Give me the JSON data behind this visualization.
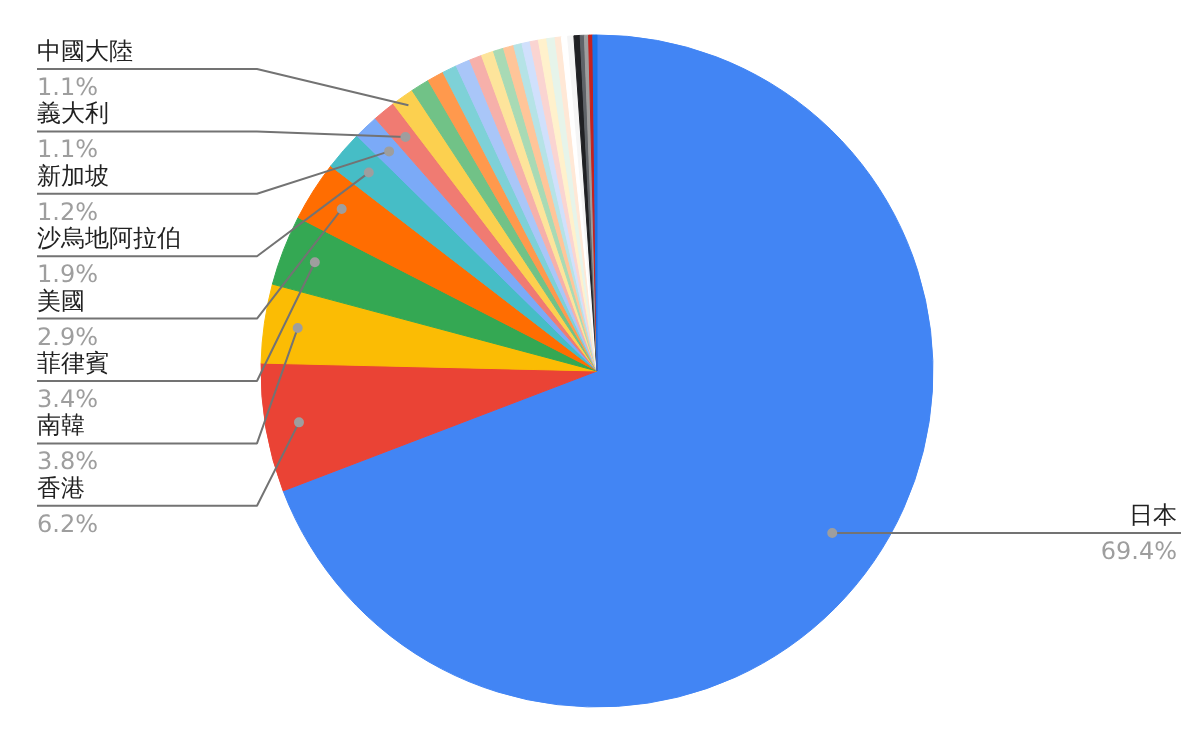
{
  "chart_data": {
    "type": "pie",
    "categories": [
      "日本",
      "香港",
      "南韓",
      "菲律賓",
      "美國",
      "沙烏地阿拉伯",
      "新加坡",
      "義大利",
      "中國大陸",
      null,
      null,
      null,
      null,
      null,
      null,
      null,
      null,
      null,
      null,
      null,
      null,
      null,
      null,
      null,
      null,
      null,
      null,
      null,
      null,
      null
    ],
    "values": [
      69.4,
      6.2,
      3.8,
      3.4,
      2.9,
      1.9,
      1.2,
      1.1,
      1.1,
      0.9,
      0.8,
      0.7,
      0.7,
      0.6,
      0.6,
      0.5,
      0.5,
      0.4,
      0.4,
      0.4,
      0.4,
      0.4,
      0.3,
      0.3,
      0.3,
      0.3,
      0.2,
      0.2,
      0.2,
      0.2
    ],
    "colors": [
      "#4285f4",
      "#ea4335",
      "#fbbc04",
      "#34a853",
      "#ff6d01",
      "#46bdc6",
      "#7baaf7",
      "#f07b72",
      "#fcd04f",
      "#71c287",
      "#ff994d",
      "#7ed1d7",
      "#a9c6f8",
      "#f6b0aa",
      "#fde49b",
      "#a8dab5",
      "#ffc599",
      "#b5e3e6",
      "#d0e0fc",
      "#fad4d1",
      "#fff1cc",
      "#e6f4ea",
      "#ffe8d6",
      "#ffffff",
      "#f5f5f5",
      "#202124",
      "#5f6368",
      "#9e9e9e",
      "#c5221f",
      "#1a73e8"
    ],
    "value_labels": [
      "69.4%",
      "6.2%",
      "3.8%",
      "3.4%",
      "2.9%",
      "1.9%",
      "1.2%",
      "1.1%",
      "1.1%",
      null,
      null,
      null,
      null,
      null,
      null,
      null,
      null,
      null,
      null,
      null,
      null,
      null,
      null,
      null,
      null,
      null,
      null,
      null,
      null,
      null
    ]
  }
}
